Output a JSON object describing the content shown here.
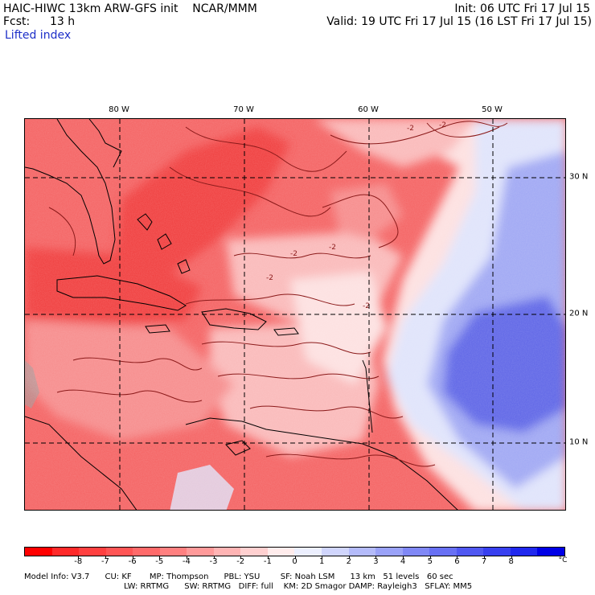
{
  "header": {
    "title": "HAIC-HIWC 13km ARW-GFS init    NCAR/MMM",
    "fcst_label": "Fcst:",
    "fcst_value": "13 h",
    "field": "Lifted index",
    "init": "Init: 06 UTC Fri 17 Jul 15",
    "valid": "Valid: 19 UTC Fri 17 Jul 15 (16 LST Fri 17 Jul 15)"
  },
  "map": {
    "lon_labels": [
      "80 W",
      "70 W",
      "60 W",
      "50 W"
    ],
    "lat_labels": [
      "30 N",
      "20 N",
      "10 N"
    ],
    "contour_labels": [
      "-2",
      "-2",
      "-2",
      "-2",
      "-2",
      "-2"
    ],
    "colors": {
      "land": "#9b9b9b",
      "deep_red": "#f03a3a",
      "red": "#f46060",
      "mid_red": "#f68a8a",
      "pink": "#fab8b8",
      "light_pink": "#fde0e0",
      "light_blue": "#dfe3fb",
      "blue": "#9ea6f3",
      "deep_blue": "#5b63e6",
      "contour": "#8b1a1a"
    }
  },
  "colorbar": {
    "ticks": [
      "-8",
      "-7",
      "-6",
      "-5",
      "-4",
      "-3",
      "-2",
      "-1",
      "0",
      "1",
      "2",
      "3",
      "4",
      "5",
      "6",
      "7",
      "8"
    ],
    "unit": "°C",
    "colors": [
      "#ff0000",
      "#ff2a2a",
      "#ff4040",
      "#ff5555",
      "#ff6a6a",
      "#ff8080",
      "#ff9a9a",
      "#ffb4b4",
      "#ffd0d0",
      "#ffecec",
      "#eceffe",
      "#d0d5fc",
      "#b4bbfa",
      "#9aa2f8",
      "#8088f6",
      "#6870f4",
      "#5058f2",
      "#3840f0",
      "#2028ee",
      "#0000e6"
    ]
  },
  "footer": {
    "line1": "Model Info: V3.7      CU: KF       MP: Thompson      PBL: YSU        SF: Noah LSM      13 km   51 levels   60 sec",
    "line2": "LW: RRTMG      SW: RRTMG   DIFF: full    KM: 2D Smagor DAMP: Rayleigh3   SFLAY: MM5"
  }
}
